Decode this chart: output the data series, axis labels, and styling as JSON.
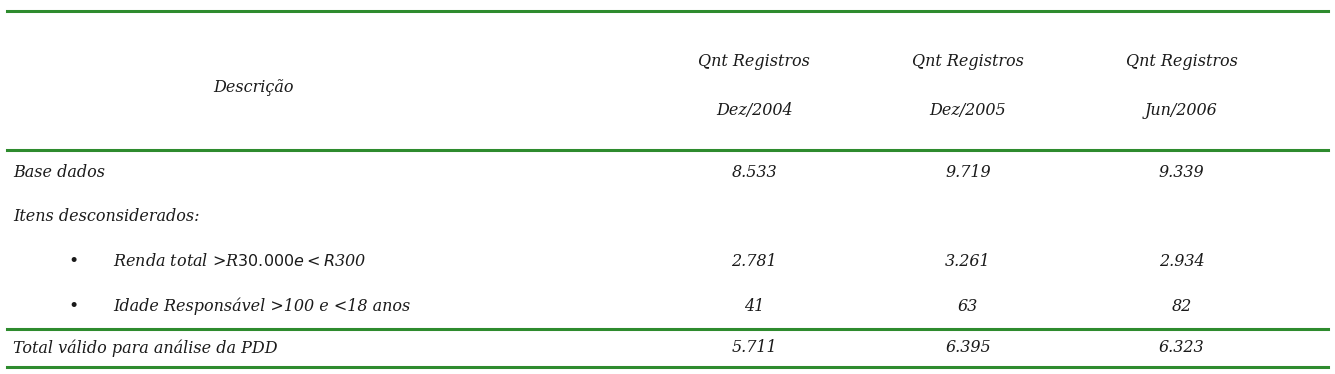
{
  "col_headers_line1": [
    "Qnt Registros",
    "Qnt Registros",
    "Qnt Registros"
  ],
  "col_headers_line2": [
    "Dez/2004",
    "Dez/2005",
    "Jun/2006"
  ],
  "header_desc": "Descrição",
  "rows": [
    {
      "label": "Base dados",
      "indent": 0,
      "bullet": false,
      "values": [
        "8.533",
        "9.719",
        "9.339"
      ],
      "bold": false
    },
    {
      "label": "Itens desconsiderados:",
      "indent": 0,
      "bullet": false,
      "values": [
        "",
        "",
        ""
      ],
      "bold": false
    },
    {
      "label": "Renda total >R$30.000 e <R$300",
      "indent": 1,
      "bullet": true,
      "values": [
        "2.781",
        "3.261",
        "2.934"
      ],
      "bold": false
    },
    {
      "label": "Idade Responsável >100 e <18 anos",
      "indent": 1,
      "bullet": true,
      "values": [
        "41",
        "63",
        "82"
      ],
      "bold": false
    },
    {
      "label": "Total válido para análise da PDD",
      "indent": 0,
      "bullet": false,
      "values": [
        "5.711",
        "6.395",
        "6.323"
      ],
      "bold": false
    }
  ],
  "line_color": "#2e8b2e",
  "bg_color": "#ffffff",
  "text_color": "#1a1a1a",
  "fig_width": 13.35,
  "fig_height": 3.74,
  "dpi": 100
}
